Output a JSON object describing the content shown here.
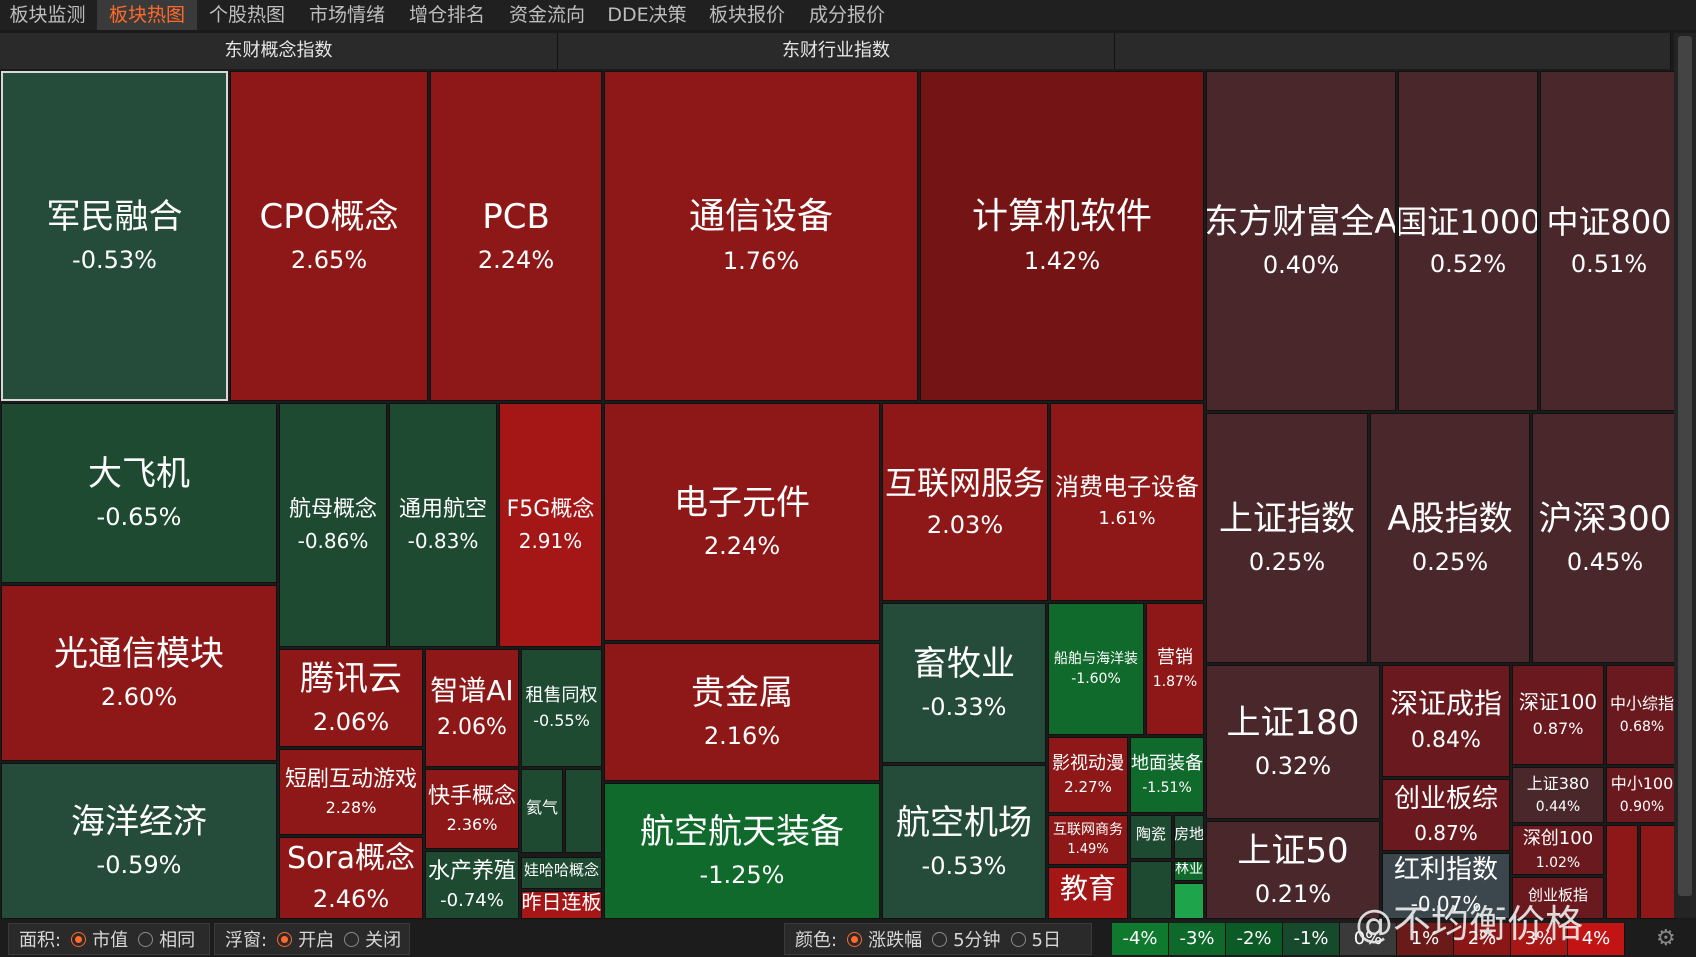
{
  "tabs": [
    {
      "label": "板块监测",
      "active": false
    },
    {
      "label": "板块热图",
      "active": true
    },
    {
      "label": "个股热图",
      "active": false
    },
    {
      "label": "市场情绪",
      "active": false
    },
    {
      "label": "增仓排名",
      "active": false
    },
    {
      "label": "资金流向",
      "active": false
    },
    {
      "label": "DDE决策",
      "active": false
    },
    {
      "label": "板块报价",
      "active": false
    },
    {
      "label": "成分报价",
      "active": false
    }
  ],
  "headers": {
    "concept": "东财概念指数",
    "industry": "东财行业指数",
    "third": ""
  },
  "colors": {
    "red": "#8a1616",
    "red_bright": "#9e1717",
    "green": "#1c4a33",
    "green_bright": "#0d6a2c",
    "index": "#4a272b",
    "accent": "#ff6a2a"
  },
  "tiles": [
    {
      "name": "军民融合",
      "pct": "-0.53%",
      "tone": "green-soft"
    },
    {
      "name": "CPO概念",
      "pct": "2.65%",
      "tone": "red"
    },
    {
      "name": "PCB",
      "pct": "2.24%",
      "tone": "red"
    },
    {
      "name": "通信设备",
      "pct": "1.76%",
      "tone": "red"
    },
    {
      "name": "计算机软件",
      "pct": "1.42%",
      "tone": "red-dark"
    },
    {
      "name": "东方财富全A",
      "pct": "0.40%",
      "tone": "index"
    },
    {
      "name": "国证1000",
      "pct": "0.52%",
      "tone": "index"
    },
    {
      "name": "中证800",
      "pct": "0.51%",
      "tone": "index"
    },
    {
      "name": "大飞机",
      "pct": "-0.65%",
      "tone": "green"
    },
    {
      "name": "航母概念",
      "pct": "-0.86%",
      "tone": "green"
    },
    {
      "name": "通用航空",
      "pct": "-0.83%",
      "tone": "green"
    },
    {
      "name": "F5G概念",
      "pct": "2.91%",
      "tone": "red-bright"
    },
    {
      "name": "电子元件",
      "pct": "2.24%",
      "tone": "red"
    },
    {
      "name": "互联网服务",
      "pct": "2.03%",
      "tone": "red"
    },
    {
      "name": "消费电子设备",
      "pct": "1.61%",
      "tone": "red"
    },
    {
      "name": "上证指数",
      "pct": "0.25%",
      "tone": "index"
    },
    {
      "name": "A股指数",
      "pct": "0.25%",
      "tone": "index"
    },
    {
      "name": "沪深300",
      "pct": "0.45%",
      "tone": "index"
    },
    {
      "name": "光通信模块",
      "pct": "2.60%",
      "tone": "red"
    },
    {
      "name": "腾讯云",
      "pct": "2.06%",
      "tone": "red"
    },
    {
      "name": "智谱AI",
      "pct": "2.06%",
      "tone": "red"
    },
    {
      "name": "租售同权",
      "pct": "-0.55%",
      "tone": "green"
    },
    {
      "name": "贵金属",
      "pct": "2.16%",
      "tone": "red"
    },
    {
      "name": "畜牧业",
      "pct": "-0.33%",
      "tone": "green-soft"
    },
    {
      "name": "船舶与海洋装",
      "pct": "-1.60%",
      "tone": "green-bright"
    },
    {
      "name": "营销",
      "pct": "1.87%",
      "tone": "red"
    },
    {
      "name": "上证180",
      "pct": "0.32%",
      "tone": "index"
    },
    {
      "name": "深证成指",
      "pct": "0.84%",
      "tone": "red-index"
    },
    {
      "name": "深证100",
      "pct": "0.87%",
      "tone": "red-index"
    },
    {
      "name": "中小综指",
      "pct": "0.68%",
      "tone": "red-index"
    },
    {
      "name": "短剧互动游戏",
      "pct": "2.28%",
      "tone": "red"
    },
    {
      "name": "快手概念",
      "pct": "2.36%",
      "tone": "red"
    },
    {
      "name": "氦气",
      "pct": "",
      "tone": "green"
    },
    {
      "name": "",
      "pct": "",
      "tone": "green"
    },
    {
      "name": "航空航天装备",
      "pct": "-1.25%",
      "tone": "green-bright"
    },
    {
      "name": "航空机场",
      "pct": "-0.53%",
      "tone": "green-soft"
    },
    {
      "name": "影视动漫",
      "pct": "2.27%",
      "tone": "red"
    },
    {
      "name": "地面装备",
      "pct": "-1.51%",
      "tone": "green-bright"
    },
    {
      "name": "上证380",
      "pct": "0.44%",
      "tone": "index"
    },
    {
      "name": "中小100",
      "pct": "0.90%",
      "tone": "red-index"
    },
    {
      "name": "创业板综",
      "pct": "0.87%",
      "tone": "red-index"
    },
    {
      "name": "深创100",
      "pct": "1.02%",
      "tone": "red-index"
    },
    {
      "name": "海洋经济",
      "pct": "-0.59%",
      "tone": "green-soft"
    },
    {
      "name": "Sora概念",
      "pct": "2.46%",
      "tone": "red"
    },
    {
      "name": "水产养殖",
      "pct": "-0.74%",
      "tone": "green"
    },
    {
      "name": "娃哈哈概念",
      "pct": "",
      "tone": "green"
    },
    {
      "name": "昨日连板",
      "pct": "",
      "tone": "red-bright"
    },
    {
      "name": "互联网商务",
      "pct": "1.49%",
      "tone": "red"
    },
    {
      "name": "陶瓷",
      "pct": "",
      "tone": "green"
    },
    {
      "name": "房地",
      "pct": "",
      "tone": "green"
    },
    {
      "name": "林业",
      "pct": "",
      "tone": "green-bright"
    },
    {
      "name": "教育",
      "pct": "",
      "tone": "red-bright"
    },
    {
      "name": "",
      "pct": "",
      "tone": "green"
    },
    {
      "name": "",
      "pct": "",
      "tone": "green-light"
    },
    {
      "name": "上证50",
      "pct": "0.21%",
      "tone": "index"
    },
    {
      "name": "红利指数",
      "pct": "-0.07%",
      "tone": "gray"
    },
    {
      "name": "创业板指",
      "pct": "",
      "tone": "red-index"
    },
    {
      "name": "",
      "pct": "",
      "tone": "red"
    },
    {
      "name": "",
      "pct": "",
      "tone": "red"
    }
  ],
  "bottom": {
    "area_label": "面积:",
    "area_options": [
      {
        "label": "市值",
        "selected": true
      },
      {
        "label": "相同",
        "selected": false
      }
    ],
    "float_label": "浮窗:",
    "float_options": [
      {
        "label": "开启",
        "selected": true
      },
      {
        "label": "关闭",
        "selected": false
      }
    ],
    "color_label": "颜色:",
    "color_options": [
      {
        "label": "涨跌幅",
        "selected": true
      },
      {
        "label": "5分钟",
        "selected": false
      },
      {
        "label": "5日",
        "selected": false
      }
    ],
    "legend": [
      {
        "label": "-4%",
        "color": "#0f7a2e"
      },
      {
        "label": "-3%",
        "color": "#0d6a2a"
      },
      {
        "label": "-2%",
        "color": "#0c5a26"
      },
      {
        "label": "-1%",
        "color": "#174a2c"
      },
      {
        "label": "0%",
        "color": "#3a3a3a"
      },
      {
        "label": "1%",
        "color": "#6b1a1a"
      },
      {
        "label": "2%",
        "color": "#8a1616"
      },
      {
        "label": "3%",
        "color": "#a81616"
      },
      {
        "label": "4%",
        "color": "#c21414"
      }
    ]
  },
  "watermark": "@不均衡价格"
}
